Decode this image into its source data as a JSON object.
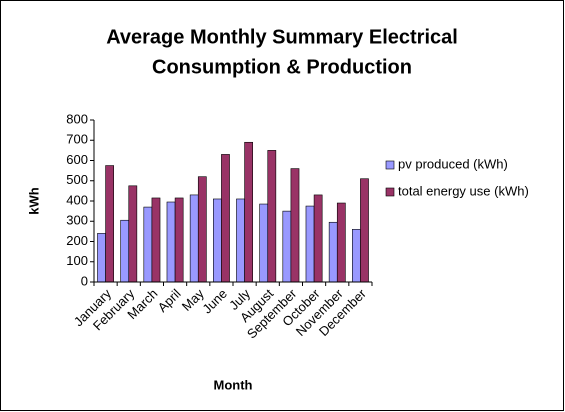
{
  "chart_data": {
    "type": "bar",
    "title": [
      "Average Monthly Summary Electrical",
      "Consumption & Production"
    ],
    "x_label": "Month",
    "y_label": "kWh",
    "categories": [
      "January",
      "February",
      "March",
      "April",
      "May",
      "June",
      "July",
      "August",
      "September",
      "October",
      "November",
      "December"
    ],
    "series": [
      {
        "name": "pv produced (kWh)",
        "color": "#9999ff",
        "values": [
          240,
          305,
          370,
          395,
          430,
          410,
          410,
          385,
          350,
          375,
          295,
          260
        ]
      },
      {
        "name": "total energy use (kWh)",
        "color": "#993366",
        "values": [
          575,
          475,
          415,
          415,
          520,
          630,
          690,
          650,
          560,
          430,
          390,
          510
        ]
      }
    ],
    "ylim": [
      0,
      800
    ],
    "yticks": [
      0,
      100,
      200,
      300,
      400,
      500,
      600,
      700,
      800
    ],
    "grid": false,
    "legend": "right"
  }
}
